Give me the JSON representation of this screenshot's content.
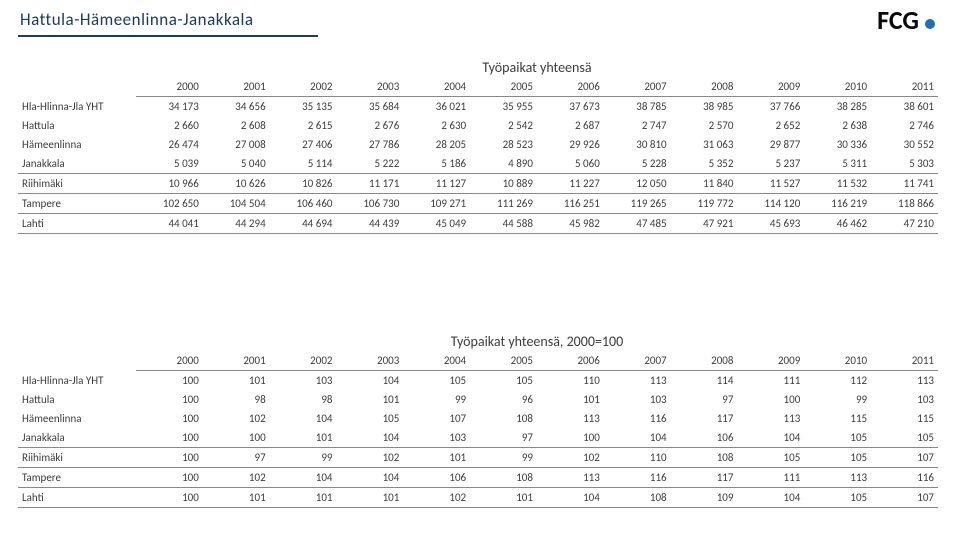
{
  "header": {
    "title": "Hattula-Hämeenlinna-Janakkala",
    "logo_text": "FCG"
  },
  "table1": {
    "caption": "Työpaikat yhteensä",
    "years": [
      "2000",
      "2001",
      "2002",
      "2003",
      "2004",
      "2005",
      "2006",
      "2007",
      "2008",
      "2009",
      "2010",
      "2011"
    ],
    "rows": [
      {
        "label": "Hla-Hlinna-Jla YHT",
        "v": [
          "34 173",
          "34 656",
          "35 135",
          "35 684",
          "36 021",
          "35 955",
          "37 673",
          "38 785",
          "38 985",
          "37 766",
          "38 285",
          "38 601"
        ],
        "sep": false
      },
      {
        "label": "Hattula",
        "v": [
          "2 660",
          "2 608",
          "2 615",
          "2 676",
          "2 630",
          "2 542",
          "2 687",
          "2 747",
          "2 570",
          "2 652",
          "2 638",
          "2 746"
        ],
        "sep": false
      },
      {
        "label": "Hämeenlinna",
        "v": [
          "26 474",
          "27 008",
          "27 406",
          "27 786",
          "28 205",
          "28 523",
          "29 926",
          "30 810",
          "31 063",
          "29 877",
          "30 336",
          "30 552"
        ],
        "sep": false
      },
      {
        "label": "Janakkala",
        "v": [
          "5 039",
          "5 040",
          "5 114",
          "5 222",
          "5 186",
          "4 890",
          "5 060",
          "5 228",
          "5 352",
          "5 237",
          "5 311",
          "5 303"
        ],
        "sep": true
      },
      {
        "label": "Riihimäki",
        "v": [
          "10 966",
          "10 626",
          "10 826",
          "11 171",
          "11 127",
          "10 889",
          "11 227",
          "12 050",
          "11 840",
          "11 527",
          "11 532",
          "11 741"
        ],
        "sep": true
      },
      {
        "label": "Tampere",
        "v": [
          "102 650",
          "104 504",
          "106 460",
          "106 730",
          "109 271",
          "111 269",
          "116 251",
          "119 265",
          "119 772",
          "114 120",
          "116 219",
          "118 866"
        ],
        "sep": true
      },
      {
        "label": "Lahti",
        "v": [
          "44 041",
          "44 294",
          "44 694",
          "44 439",
          "45 049",
          "44 588",
          "45 982",
          "47 485",
          "47 921",
          "45 693",
          "46 462",
          "47 210"
        ],
        "sep": true
      }
    ]
  },
  "table2": {
    "caption": "Työpaikat yhteensä, 2000=100",
    "years": [
      "2000",
      "2001",
      "2002",
      "2003",
      "2004",
      "2005",
      "2006",
      "2007",
      "2008",
      "2009",
      "2010",
      "2011"
    ],
    "rows": [
      {
        "label": "Hla-Hlinna-Jla YHT",
        "v": [
          "100",
          "101",
          "103",
          "104",
          "105",
          "105",
          "110",
          "113",
          "114",
          "111",
          "112",
          "113"
        ],
        "sep": false
      },
      {
        "label": "Hattula",
        "v": [
          "100",
          "98",
          "98",
          "101",
          "99",
          "96",
          "101",
          "103",
          "97",
          "100",
          "99",
          "103"
        ],
        "sep": false
      },
      {
        "label": "Hämeenlinna",
        "v": [
          "100",
          "102",
          "104",
          "105",
          "107",
          "108",
          "113",
          "116",
          "117",
          "113",
          "115",
          "115"
        ],
        "sep": false
      },
      {
        "label": "Janakkala",
        "v": [
          "100",
          "100",
          "101",
          "104",
          "103",
          "97",
          "100",
          "104",
          "106",
          "104",
          "105",
          "105"
        ],
        "sep": true
      },
      {
        "label": "Riihimäki",
        "v": [
          "100",
          "97",
          "99",
          "102",
          "101",
          "99",
          "102",
          "110",
          "108",
          "105",
          "105",
          "107"
        ],
        "sep": true
      },
      {
        "label": "Tampere",
        "v": [
          "100",
          "102",
          "104",
          "104",
          "106",
          "108",
          "113",
          "116",
          "117",
          "111",
          "113",
          "116"
        ],
        "sep": true
      },
      {
        "label": "Lahti",
        "v": [
          "100",
          "101",
          "101",
          "101",
          "102",
          "101",
          "104",
          "108",
          "109",
          "104",
          "105",
          "107"
        ],
        "sep": true
      }
    ]
  }
}
